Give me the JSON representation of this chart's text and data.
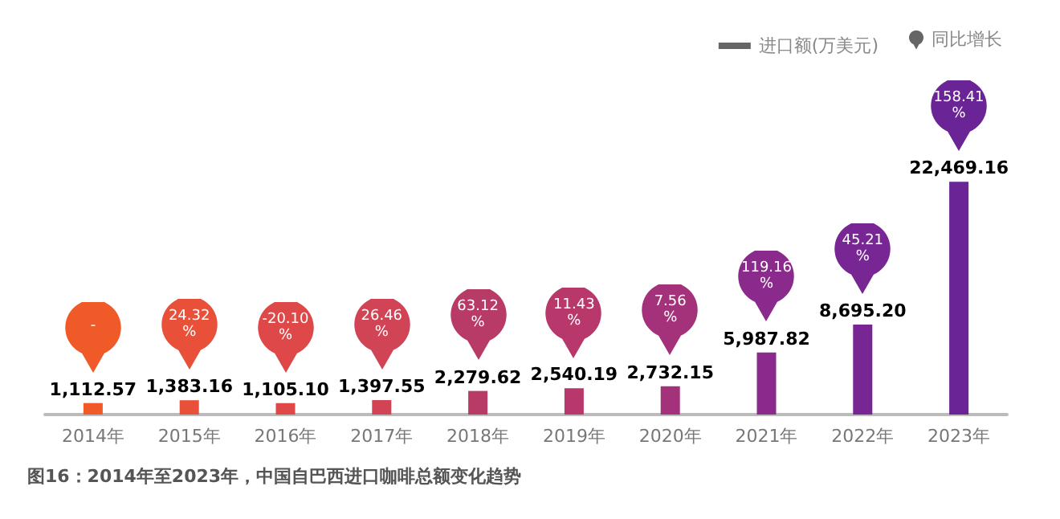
{
  "chart_data": {
    "type": "bar",
    "title": "图16：2014年至2023年，中国自巴西进口咖啡总额变化趋势",
    "categories": [
      "2014年",
      "2015年",
      "2016年",
      "2017年",
      "2018年",
      "2019年",
      "2020年",
      "2021年",
      "2022年",
      "2023年"
    ],
    "series": [
      {
        "name": "进口额(万美元)",
        "color": "#666666",
        "colors": [
          "#f05a28",
          "#e9503a",
          "#de4848",
          "#d04456",
          "#b83a66",
          "#b8386c",
          "#a4327a",
          "#8a2a8c",
          "#782694",
          "#6a2496"
        ],
        "values": [
          1112.57,
          1383.16,
          1105.1,
          1397.55,
          2279.62,
          2540.19,
          2732.15,
          5987.82,
          8695.2,
          22469.16
        ],
        "value_labels": [
          "1,112.57",
          "1,383.16",
          "1,105.10",
          "1,397.55",
          "2,279.62",
          "2,540.19",
          "2,732.15",
          "5,987.82",
          "8,695.20",
          "22,469.16"
        ]
      }
    ],
    "annotations": [
      "同比增长",
      "-",
      "24.32%",
      "-20.10%",
      "26.46%",
      "63.12%",
      "11.43%",
      "7.56%",
      "119.16%",
      "45.21%",
      "158.41%"
    ],
    "tick_labels": "x",
    "grid": false,
    "legend": "top right"
  }
}
